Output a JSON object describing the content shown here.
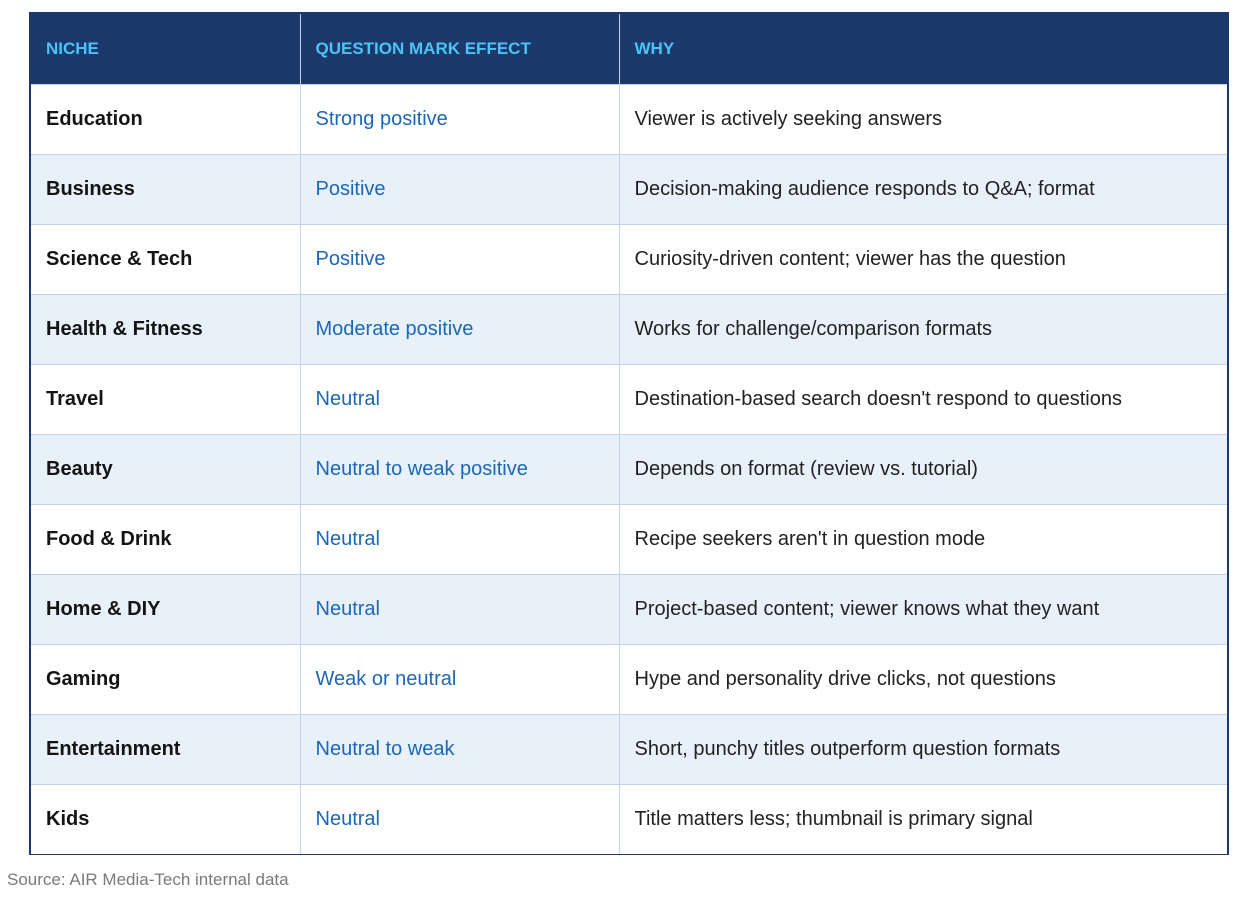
{
  "table": {
    "headers": [
      "NICHE",
      "QUESTION MARK EFFECT",
      "WHY"
    ],
    "rows": [
      {
        "niche": "Education",
        "effect": "Strong positive",
        "why": "Viewer is actively seeking answers"
      },
      {
        "niche": "Business",
        "effect": "Positive",
        "why": "Decision-making audience responds to Q&A; format"
      },
      {
        "niche": "Science & Tech",
        "effect": "Positive",
        "why": "Curiosity-driven content; viewer has the question"
      },
      {
        "niche": "Health & Fitness",
        "effect": "Moderate positive",
        "why": "Works for challenge/comparison formats"
      },
      {
        "niche": "Travel",
        "effect": "Neutral",
        "why": "Destination-based search doesn't respond to questions"
      },
      {
        "niche": "Beauty",
        "effect": "Neutral to weak positive",
        "why": "Depends on format (review vs. tutorial)"
      },
      {
        "niche": "Food & Drink",
        "effect": "Neutral",
        "why": "Recipe seekers aren't in question mode"
      },
      {
        "niche": "Home & DIY",
        "effect": "Neutral",
        "why": "Project-based content; viewer knows what they want"
      },
      {
        "niche": "Gaming",
        "effect": "Weak or neutral",
        "why": "Hype and personality drive clicks, not questions"
      },
      {
        "niche": "Entertainment",
        "effect": "Neutral to weak",
        "why": "Short, punchy titles outperform question formats"
      },
      {
        "niche": "Kids",
        "effect": "Neutral",
        "why": "Title matters less; thumbnail is primary signal"
      }
    ]
  },
  "source": "Source: AIR Media-Tech internal data",
  "colors": {
    "header_bg": "#1b3a6b",
    "header_text": "#4cc3f5",
    "effect_text": "#1c67b6",
    "stripe_bg": "#e8f1f9"
  }
}
